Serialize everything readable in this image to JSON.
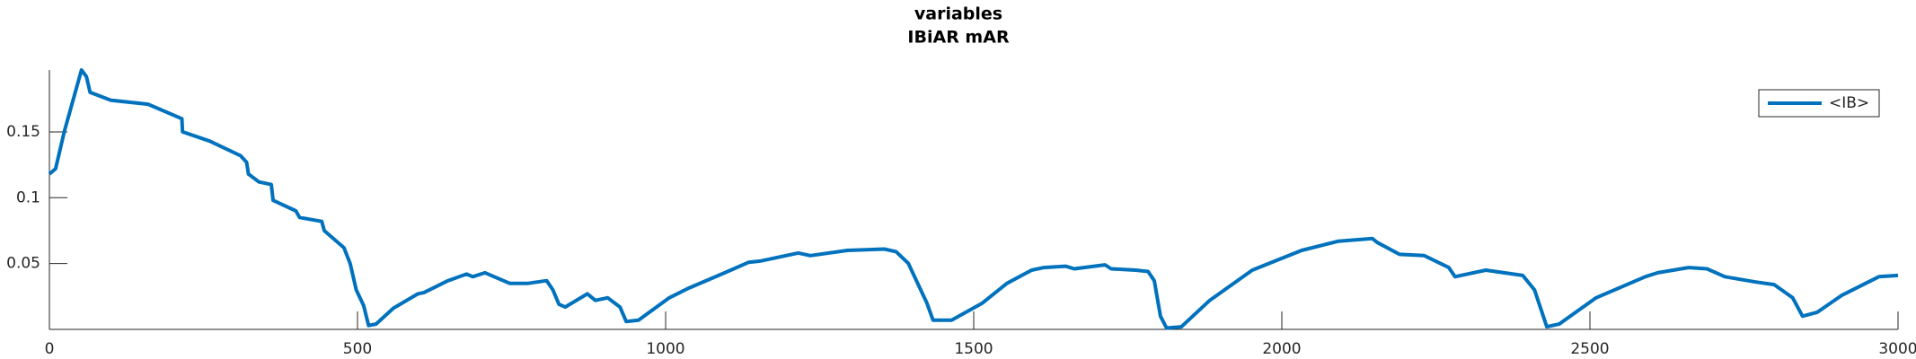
{
  "chart_data": {
    "type": "line",
    "title": "variables",
    "subtitle": "IBiAR mAR",
    "x": [
      0,
      10,
      24,
      52,
      60,
      66,
      100,
      160,
      215,
      216,
      260,
      310,
      320,
      323,
      340,
      360,
      363,
      400,
      406,
      442,
      446,
      478,
      488,
      498,
      510,
      518,
      530,
      558,
      598,
      608,
      647,
      677,
      687,
      707,
      717,
      747,
      777,
      807,
      817,
      827,
      837,
      873,
      886,
      906,
      926,
      936,
      956,
      1006,
      1036,
      1096,
      1135,
      1155,
      1215,
      1235,
      1295,
      1355,
      1374,
      1394,
      1414,
      1424,
      1434,
      1464,
      1514,
      1554,
      1594,
      1614,
      1649,
      1663,
      1713,
      1723,
      1763,
      1783,
      1793,
      1803,
      1813,
      1837,
      1883,
      1952,
      2032,
      2092,
      2147,
      2155,
      2191,
      2231,
      2271,
      2281,
      2331,
      2391,
      2410,
      2430,
      2450,
      2510,
      2590,
      2610,
      2660,
      2690,
      2719,
      2769,
      2799,
      2829,
      2845,
      2869,
      2909,
      2969,
      3000
    ],
    "series": [
      {
        "name": "<IB>",
        "color": "#0072bd",
        "values": [
          0.118,
          0.122,
          0.15,
          0.197,
          0.192,
          0.18,
          0.174,
          0.171,
          0.16,
          0.15,
          0.143,
          0.132,
          0.127,
          0.118,
          0.112,
          0.11,
          0.098,
          0.09,
          0.085,
          0.082,
          0.075,
          0.062,
          0.05,
          0.03,
          0.018,
          0.003,
          0.004,
          0.016,
          0.027,
          0.028,
          0.037,
          0.042,
          0.04,
          0.043,
          0.041,
          0.035,
          0.035,
          0.037,
          0.03,
          0.019,
          0.017,
          0.027,
          0.022,
          0.024,
          0.017,
          0.006,
          0.007,
          0.024,
          0.031,
          0.043,
          0.051,
          0.052,
          0.058,
          0.056,
          0.06,
          0.061,
          0.059,
          0.05,
          0.03,
          0.02,
          0.007,
          0.007,
          0.02,
          0.035,
          0.045,
          0.047,
          0.048,
          0.046,
          0.049,
          0.046,
          0.045,
          0.044,
          0.037,
          0.01,
          0.001,
          0.002,
          0.022,
          0.045,
          0.06,
          0.067,
          0.069,
          0.066,
          0.057,
          0.056,
          0.047,
          0.04,
          0.045,
          0.041,
          0.03,
          0.002,
          0.004,
          0.024,
          0.04,
          0.043,
          0.047,
          0.046,
          0.04,
          0.036,
          0.034,
          0.024,
          0.01,
          0.013,
          0.026,
          0.04,
          0.041
        ]
      }
    ],
    "xlim": [
      0,
      3000
    ],
    "xticks": [
      0,
      500,
      1000,
      1500,
      2000,
      2500,
      3000
    ],
    "ylim": [
      0,
      0.197
    ],
    "yticks": [
      0.05,
      0.1,
      0.15
    ],
    "legend": "upper-right"
  }
}
